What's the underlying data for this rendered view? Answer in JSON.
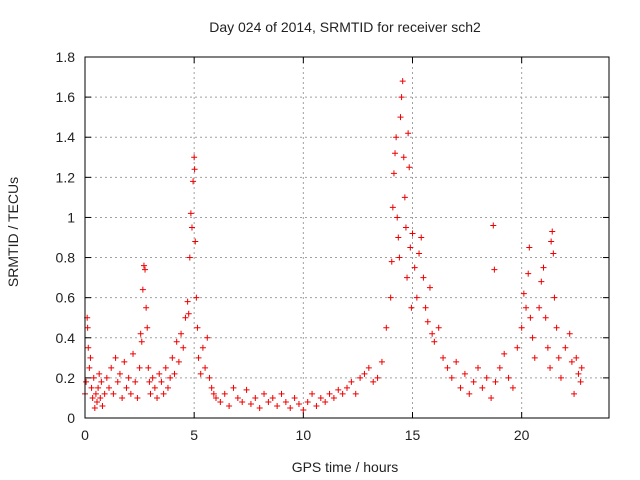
{
  "chart_data": {
    "type": "scatter",
    "title": "Day 024 of 2014, SRMTID for receiver sch2",
    "xlabel": "GPS time / hours",
    "ylabel": "SRMTID / TECUs",
    "xlim": [
      0,
      24
    ],
    "ylim": [
      0,
      1.8
    ],
    "xticks": [
      0,
      5,
      10,
      15,
      20
    ],
    "xtick_labels": [
      "0",
      "5",
      "10",
      "15",
      "20"
    ],
    "yticks": [
      0,
      0.2,
      0.4,
      0.6,
      0.8,
      1.0,
      1.2,
      1.4,
      1.6,
      1.8
    ],
    "ytick_labels": [
      "0",
      "0.2",
      "0.4",
      "0.6",
      "0.8",
      "1",
      "1.2",
      "1.4",
      "1.6",
      "1.8"
    ],
    "grid": true,
    "marker": "+",
    "color": "#ee0000",
    "series": [
      {
        "name": "sch2",
        "points": [
          [
            0.0,
            0.12
          ],
          [
            0.05,
            0.18
          ],
          [
            0.1,
            0.5
          ],
          [
            0.12,
            0.45
          ],
          [
            0.15,
            0.35
          ],
          [
            0.2,
            0.25
          ],
          [
            0.25,
            0.3
          ],
          [
            0.3,
            0.15
          ],
          [
            0.35,
            0.1
          ],
          [
            0.4,
            0.2
          ],
          [
            0.45,
            0.05
          ],
          [
            0.5,
            0.12
          ],
          [
            0.55,
            0.08
          ],
          [
            0.6,
            0.15
          ],
          [
            0.65,
            0.22
          ],
          [
            0.7,
            0.1
          ],
          [
            0.75,
            0.18
          ],
          [
            0.8,
            0.06
          ],
          [
            0.9,
            0.12
          ],
          [
            1.0,
            0.2
          ],
          [
            1.1,
            0.15
          ],
          [
            1.2,
            0.25
          ],
          [
            1.3,
            0.12
          ],
          [
            1.4,
            0.3
          ],
          [
            1.5,
            0.18
          ],
          [
            1.6,
            0.22
          ],
          [
            1.7,
            0.1
          ],
          [
            1.8,
            0.28
          ],
          [
            1.9,
            0.15
          ],
          [
            2.0,
            0.2
          ],
          [
            2.1,
            0.12
          ],
          [
            2.2,
            0.32
          ],
          [
            2.3,
            0.18
          ],
          [
            2.4,
            0.1
          ],
          [
            2.5,
            0.25
          ],
          [
            2.55,
            0.42
          ],
          [
            2.6,
            0.38
          ],
          [
            2.65,
            0.64
          ],
          [
            2.7,
            0.76
          ],
          [
            2.75,
            0.74
          ],
          [
            2.8,
            0.55
          ],
          [
            2.85,
            0.45
          ],
          [
            2.9,
            0.25
          ],
          [
            2.95,
            0.18
          ],
          [
            3.0,
            0.12
          ],
          [
            3.1,
            0.2
          ],
          [
            3.2,
            0.15
          ],
          [
            3.3,
            0.1
          ],
          [
            3.4,
            0.22
          ],
          [
            3.5,
            0.18
          ],
          [
            3.6,
            0.12
          ],
          [
            3.7,
            0.25
          ],
          [
            3.8,
            0.15
          ],
          [
            3.9,
            0.2
          ],
          [
            4.0,
            0.3
          ],
          [
            4.1,
            0.22
          ],
          [
            4.2,
            0.38
          ],
          [
            4.3,
            0.28
          ],
          [
            4.4,
            0.42
          ],
          [
            4.5,
            0.35
          ],
          [
            4.6,
            0.5
          ],
          [
            4.7,
            0.58
          ],
          [
            4.75,
            0.52
          ],
          [
            4.8,
            0.8
          ],
          [
            4.85,
            1.02
          ],
          [
            4.9,
            0.95
          ],
          [
            4.95,
            1.18
          ],
          [
            5.0,
            1.3
          ],
          [
            5.02,
            1.24
          ],
          [
            5.05,
            0.88
          ],
          [
            5.1,
            0.6
          ],
          [
            5.15,
            0.45
          ],
          [
            5.2,
            0.3
          ],
          [
            5.3,
            0.22
          ],
          [
            5.4,
            0.35
          ],
          [
            5.5,
            0.25
          ],
          [
            5.6,
            0.4
          ],
          [
            5.7,
            0.2
          ],
          [
            5.8,
            0.15
          ],
          [
            5.9,
            0.12
          ],
          [
            6.0,
            0.1
          ],
          [
            6.2,
            0.08
          ],
          [
            6.4,
            0.12
          ],
          [
            6.6,
            0.06
          ],
          [
            6.8,
            0.15
          ],
          [
            7.0,
            0.1
          ],
          [
            7.2,
            0.08
          ],
          [
            7.4,
            0.14
          ],
          [
            7.6,
            0.07
          ],
          [
            7.8,
            0.1
          ],
          [
            8.0,
            0.05
          ],
          [
            8.2,
            0.12
          ],
          [
            8.4,
            0.08
          ],
          [
            8.6,
            0.1
          ],
          [
            8.8,
            0.06
          ],
          [
            9.0,
            0.12
          ],
          [
            9.2,
            0.08
          ],
          [
            9.4,
            0.05
          ],
          [
            9.6,
            0.1
          ],
          [
            9.8,
            0.07
          ],
          [
            10.0,
            0.04
          ],
          [
            10.2,
            0.08
          ],
          [
            10.4,
            0.12
          ],
          [
            10.6,
            0.06
          ],
          [
            10.8,
            0.1
          ],
          [
            11.0,
            0.08
          ],
          [
            11.2,
            0.12
          ],
          [
            11.4,
            0.1
          ],
          [
            11.6,
            0.14
          ],
          [
            11.8,
            0.12
          ],
          [
            12.0,
            0.15
          ],
          [
            12.2,
            0.18
          ],
          [
            12.4,
            0.12
          ],
          [
            12.6,
            0.2
          ],
          [
            12.8,
            0.22
          ],
          [
            13.0,
            0.25
          ],
          [
            13.2,
            0.18
          ],
          [
            13.4,
            0.2
          ],
          [
            13.6,
            0.28
          ],
          [
            13.8,
            0.45
          ],
          [
            14.0,
            0.6
          ],
          [
            14.05,
            0.78
          ],
          [
            14.1,
            1.05
          ],
          [
            14.15,
            1.22
          ],
          [
            14.2,
            1.32
          ],
          [
            14.25,
            1.4
          ],
          [
            14.3,
            1.0
          ],
          [
            14.35,
            0.9
          ],
          [
            14.4,
            0.8
          ],
          [
            14.45,
            1.5
          ],
          [
            14.5,
            1.6
          ],
          [
            14.55,
            1.68
          ],
          [
            14.6,
            1.3
          ],
          [
            14.65,
            1.1
          ],
          [
            14.7,
            0.95
          ],
          [
            14.75,
            0.7
          ],
          [
            14.8,
            1.42
          ],
          [
            14.85,
            1.25
          ],
          [
            14.9,
            0.85
          ],
          [
            14.95,
            0.55
          ],
          [
            15.0,
            0.92
          ],
          [
            15.1,
            0.75
          ],
          [
            15.2,
            0.6
          ],
          [
            15.3,
            0.82
          ],
          [
            15.4,
            0.9
          ],
          [
            15.5,
            0.7
          ],
          [
            15.6,
            0.55
          ],
          [
            15.7,
            0.48
          ],
          [
            15.8,
            0.65
          ],
          [
            15.9,
            0.42
          ],
          [
            16.0,
            0.38
          ],
          [
            16.2,
            0.45
          ],
          [
            16.4,
            0.3
          ],
          [
            16.6,
            0.25
          ],
          [
            16.8,
            0.2
          ],
          [
            17.0,
            0.28
          ],
          [
            17.2,
            0.15
          ],
          [
            17.4,
            0.22
          ],
          [
            17.6,
            0.12
          ],
          [
            17.8,
            0.18
          ],
          [
            18.0,
            0.25
          ],
          [
            18.2,
            0.15
          ],
          [
            18.4,
            0.2
          ],
          [
            18.6,
            0.1
          ],
          [
            18.7,
            0.96
          ],
          [
            18.75,
            0.74
          ],
          [
            18.8,
            0.18
          ],
          [
            19.0,
            0.25
          ],
          [
            19.2,
            0.32
          ],
          [
            19.4,
            0.2
          ],
          [
            19.6,
            0.15
          ],
          [
            19.8,
            0.35
          ],
          [
            20.0,
            0.45
          ],
          [
            20.1,
            0.62
          ],
          [
            20.2,
            0.55
          ],
          [
            20.3,
            0.72
          ],
          [
            20.35,
            0.85
          ],
          [
            20.4,
            0.5
          ],
          [
            20.5,
            0.4
          ],
          [
            20.6,
            0.3
          ],
          [
            20.8,
            0.55
          ],
          [
            20.9,
            0.68
          ],
          [
            21.0,
            0.75
          ],
          [
            21.1,
            0.5
          ],
          [
            21.2,
            0.35
          ],
          [
            21.3,
            0.25
          ],
          [
            21.35,
            0.88
          ],
          [
            21.4,
            0.93
          ],
          [
            21.45,
            0.82
          ],
          [
            21.5,
            0.6
          ],
          [
            21.6,
            0.45
          ],
          [
            21.7,
            0.3
          ],
          [
            21.8,
            0.2
          ],
          [
            22.0,
            0.35
          ],
          [
            22.2,
            0.42
          ],
          [
            22.3,
            0.28
          ],
          [
            22.4,
            0.12
          ],
          [
            22.5,
            0.3
          ],
          [
            22.6,
            0.22
          ],
          [
            22.7,
            0.18
          ],
          [
            22.75,
            0.25
          ]
        ]
      }
    ]
  }
}
